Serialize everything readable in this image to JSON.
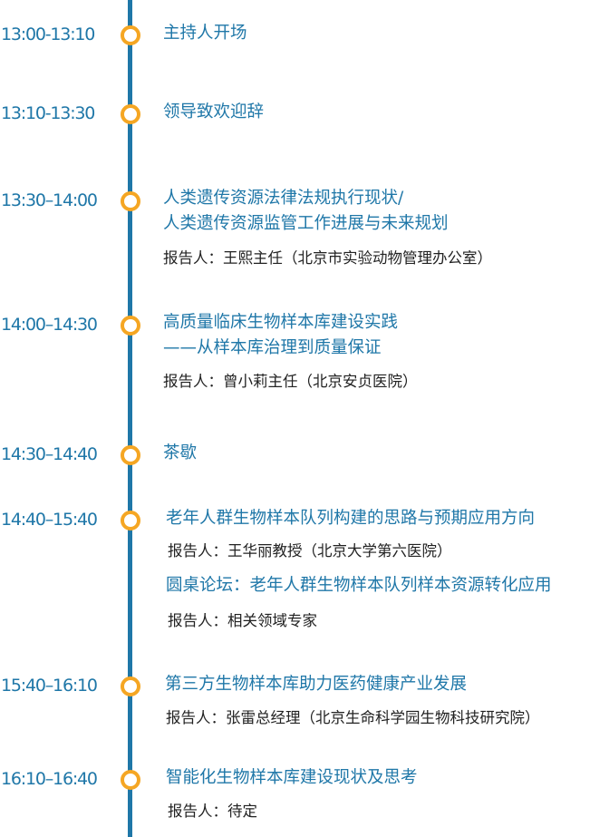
{
  "colors": {
    "line": "#1f77a8",
    "dot": "#f5a623",
    "text": "#1f77a8"
  },
  "items": [
    {
      "time": "13:00-13:10",
      "title": "主持人开场"
    },
    {
      "time": "13:10-13:30",
      "title": "领导致欢迎辞"
    },
    {
      "time": "13:30–14:00",
      "title": "人类遗传资源法律法规执行现状/",
      "title2": "人类遗传资源监管工作进展与未来规划",
      "reporter": "报告人：王熙主任（北京市实验动物管理办公室）"
    },
    {
      "time": "14:00–14:30",
      "title": "高质量临床生物样本库建设实践",
      "title2": "——从样本库治理到质量保证",
      "reporter": "报告人：曾小莉主任（北京安贞医院）"
    },
    {
      "time": "14:30–14:40",
      "title": "茶歇"
    },
    {
      "time": "14:40–15:40",
      "title": "老年人群生物样本队列构建的思路与预期应用方向",
      "reporter": "报告人：王华丽教授（北京大学第六医院）",
      "title2": "圆桌论坛：老年人群生物样本队列样本资源转化应用",
      "reporter2": "报告人：相关领域专家"
    },
    {
      "time": "15:40–16:10",
      "title": "第三方生物样本库助力医药健康产业发展",
      "reporter": "报告人：张雷总经理（北京生命科学园生物科技研究院）"
    },
    {
      "time": "16:10–16:40",
      "title": "智能化生物样本库建设现状及思考",
      "reporter": "报告人：待定"
    }
  ]
}
